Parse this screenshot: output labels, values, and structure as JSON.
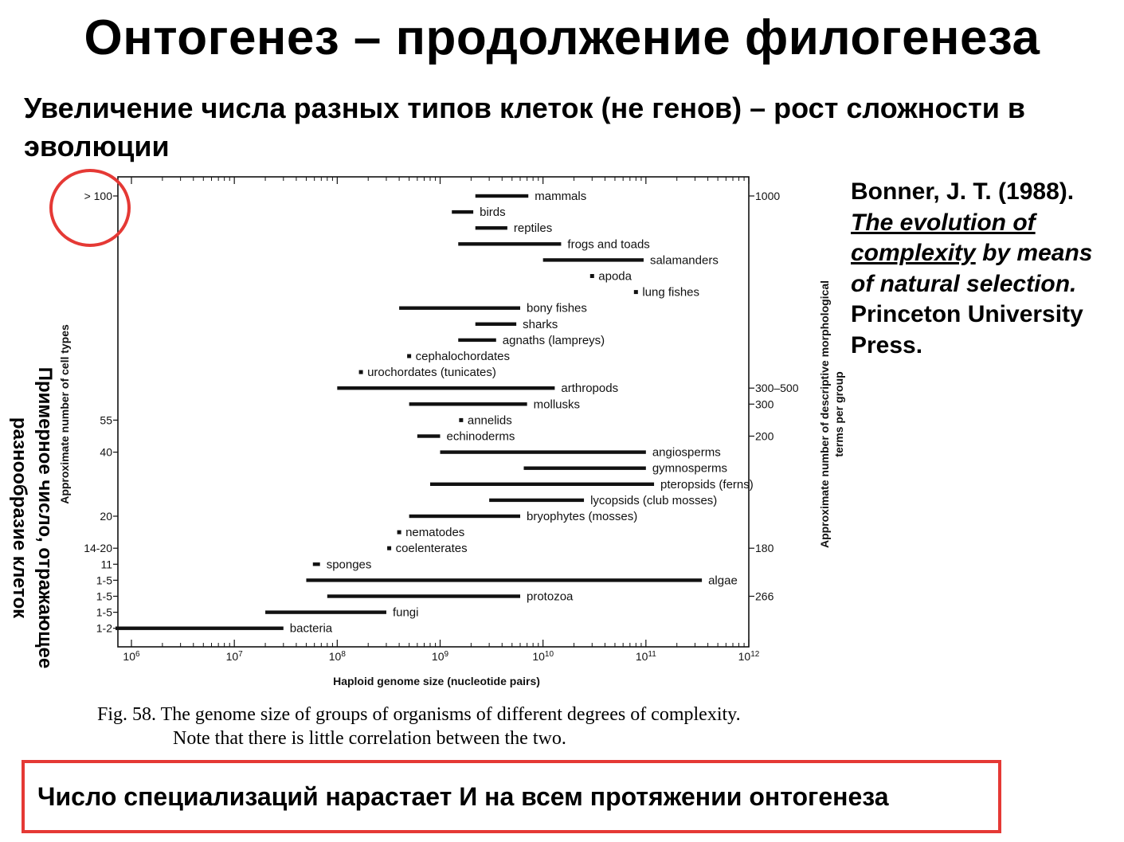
{
  "title": "Онтогенез – продолжение филогенеза",
  "subtitle": "Увеличение числа разных типов клеток (не генов) – рост сложности в эволюции",
  "citation": {
    "line1": "Bonner, J. T. (1988).",
    "book_title_a": "The evolution of",
    "book_title_b": "complexity",
    "book_rest": " by means of natural selection.",
    "publisher": "Princeton University Press."
  },
  "ru_ylabel": "Примерное число, отражающее разнообразие клеток",
  "caption": {
    "line1": "Fig. 58.  The genome size of groups of organisms of different degrees of complexity.",
    "line2": "Note that there is little correlation between the two."
  },
  "bottom_note": "Число специализаций нарастает И на всем протяжении онтогенеза",
  "colors": {
    "highlight": "#e53935",
    "ink": "#111111"
  },
  "chart_data": {
    "type": "bar",
    "orientation": "horizontal-range",
    "xlabel": "Haploid genome size (nucleotide pairs)",
    "ylabel_left": "Approximate number of cell types",
    "ylabel_right": "Approximate number of descriptive morphological terms per group",
    "x_scale": "log",
    "xlim": [
      1000000.0,
      1000000000000.0
    ],
    "x_ticks": [
      {
        "v": 1000000.0,
        "base": "10",
        "exp": "6"
      },
      {
        "v": 10000000.0,
        "base": "10",
        "exp": "7"
      },
      {
        "v": 100000000.0,
        "base": "10",
        "exp": "8"
      },
      {
        "v": 1000000000.0,
        "base": "10",
        "exp": "9"
      },
      {
        "v": 10000000000.0,
        "base": "10",
        "exp": "10"
      },
      {
        "v": 100000000000.0,
        "base": "10",
        "exp": "11"
      },
      {
        "v": 1000000000000.0,
        "base": "10",
        "exp": "12"
      }
    ],
    "left_tick_labels": [
      {
        "label": "> 100",
        "row": 0
      },
      {
        "label": "55",
        "row": 14
      },
      {
        "label": "40",
        "row": 16
      },
      {
        "label": "20",
        "row": 20
      },
      {
        "label": "14-20",
        "row": 22
      },
      {
        "label": "11",
        "row": 23
      },
      {
        "label": "1-5",
        "row": 24
      },
      {
        "label": "1-5",
        "row": 25
      },
      {
        "label": "1-5",
        "row": 26
      },
      {
        "label": "1-2",
        "row": 27
      }
    ],
    "right_tick_labels": [
      {
        "label": "1000",
        "row": 0
      },
      {
        "label": "300–500",
        "row": 12
      },
      {
        "label": "300",
        "row": 13
      },
      {
        "label": "200",
        "row": 15
      },
      {
        "label": "180",
        "row": 22
      },
      {
        "label": "266",
        "row": 25
      }
    ],
    "groups": [
      {
        "name": "mammals",
        "min": 2200000000.0,
        "max": 7200000000.0
      },
      {
        "name": "birds",
        "min": 1300000000.0,
        "max": 2100000000.0
      },
      {
        "name": "reptiles",
        "min": 2200000000.0,
        "max": 4500000000.0
      },
      {
        "name": "frogs and toads",
        "min": 1500000000.0,
        "max": 15000000000.0
      },
      {
        "name": "salamanders",
        "min": 10000000000.0,
        "max": 95000000000.0
      },
      {
        "name": "apoda",
        "min": 30000000000.0,
        "max": 30000000000.0
      },
      {
        "name": "lung fishes",
        "min": 80000000000.0,
        "max": 80000000000.0
      },
      {
        "name": "bony fishes",
        "min": 400000000.0,
        "max": 6000000000.0
      },
      {
        "name": "sharks",
        "min": 2200000000.0,
        "max": 5500000000.0
      },
      {
        "name": "agnaths (lampreys)",
        "min": 1500000000.0,
        "max": 3500000000.0
      },
      {
        "name": "cephalochordates",
        "min": 500000000.0,
        "max": 500000000.0
      },
      {
        "name": "urochordates (tunicates)",
        "min": 170000000.0,
        "max": 170000000.0
      },
      {
        "name": "arthropods",
        "min": 100000000.0,
        "max": 13000000000.0
      },
      {
        "name": "mollusks",
        "min": 500000000.0,
        "max": 7000000000.0
      },
      {
        "name": "annelids",
        "min": 1600000000.0,
        "max": 1600000000.0
      },
      {
        "name": "echinoderms",
        "min": 600000000.0,
        "max": 1000000000.0
      },
      {
        "name": "angiosperms",
        "min": 1000000000.0,
        "max": 100000000000.0
      },
      {
        "name": "gymnosperms",
        "min": 6500000000.0,
        "max": 100000000000.0
      },
      {
        "name": "pteropsids (ferns)",
        "min": 800000000.0,
        "max": 120000000000.0
      },
      {
        "name": "lycopsids (club mosses)",
        "min": 3000000000.0,
        "max": 25000000000.0
      },
      {
        "name": "bryophytes (mosses)",
        "min": 500000000.0,
        "max": 6000000000.0
      },
      {
        "name": "nematodes",
        "min": 400000000.0,
        "max": 400000000.0
      },
      {
        "name": "coelenterates",
        "min": 320000000.0,
        "max": 320000000.0
      },
      {
        "name": "sponges",
        "min": 58000000.0,
        "max": 68000000.0
      },
      {
        "name": "algae",
        "min": 50000000.0,
        "max": 350000000000.0
      },
      {
        "name": "protozoa",
        "min": 80000000.0,
        "max": 6000000000.0
      },
      {
        "name": "fungi",
        "min": 20000000.0,
        "max": 300000000.0
      },
      {
        "name": "bacteria",
        "min": 700000.0,
        "max": 30000000.0
      }
    ]
  }
}
